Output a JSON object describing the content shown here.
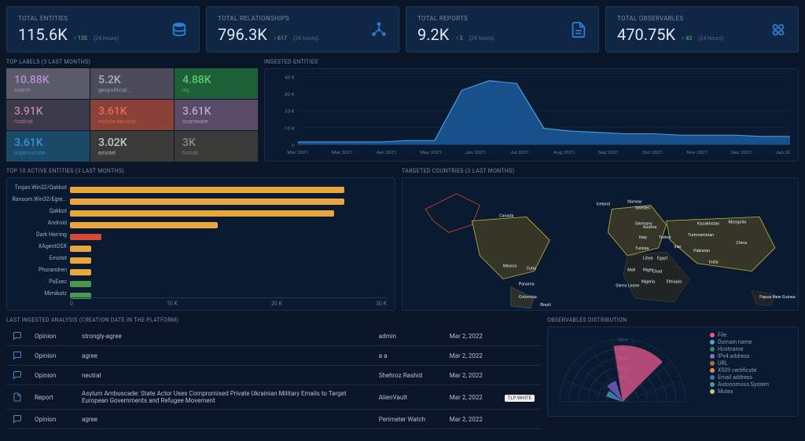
{
  "stats": [
    {
      "label": "TOTAL ENTITIES",
      "value": "115.6K",
      "delta": "↑ 135",
      "period": "(24 hours)",
      "icon": "database",
      "iconColor": "#2a7fd4"
    },
    {
      "label": "TOTAL RELATIONSHIPS",
      "value": "796.3K",
      "delta": "↑ 617",
      "period": "(24 hours)",
      "icon": "network",
      "iconColor": "#2a7fd4"
    },
    {
      "label": "TOTAL REPORTS",
      "value": "9.2K",
      "delta": "↑ 3",
      "period": "(24 hours)",
      "icon": "document",
      "iconColor": "#2a7fd4"
    },
    {
      "label": "TOTAL OBSERVABLES",
      "value": "470.75K",
      "delta": "↑ 43",
      "period": "(24 hours)",
      "icon": "hex",
      "iconColor": "#2a7fd4"
    }
  ],
  "topLabels": {
    "title": "TOP LABELS (3 LAST MONTHS)",
    "cells": [
      {
        "value": "10.88K",
        "name": "search",
        "bg": "#5a5a68",
        "fg": "#b88dd8"
      },
      {
        "value": "5.2K",
        "name": "geopolitical...",
        "bg": "#4a4a58",
        "fg": "#a8b0c0"
      },
      {
        "value": "4.88K",
        "name": "irq",
        "bg": "#1d6038",
        "fg": "#5ac96e"
      },
      {
        "value": "3.91K",
        "name": "motivat",
        "bg": "#3a3a48",
        "fg": "#c080b0"
      },
      {
        "value": "3.61K",
        "name": "mobile-security",
        "bg": "#8a4238",
        "fg": "#e86850"
      },
      {
        "value": "3.61K",
        "name": "scamware",
        "bg": "#5a4a68",
        "fg": "#b8a8d0"
      },
      {
        "value": "3.61K",
        "name": "impersonate",
        "bg": "#1a4a68",
        "fg": "#3494cc"
      },
      {
        "value": "3.02K",
        "name": "emotet",
        "bg": "#3a3a38",
        "fg": "#c0c8d6"
      },
      {
        "value": "3K",
        "name": "botnet",
        "bg": "#3a3a38",
        "fg": "#888888"
      }
    ]
  },
  "ingested": {
    "title": "INGESTED ENTITIES",
    "yticks": [
      "40 K",
      "30 K",
      "20 K",
      "10 K",
      "0"
    ],
    "xticks": [
      "Mar 2021",
      "Mar 2021",
      "Apr 2021",
      "May 2021",
      "Jun 2021",
      "Jul 2021",
      "Aug 2021",
      "Sep 2021",
      "Oct 2021",
      "Nov 2021",
      "Dec 2021",
      "Jan 2022"
    ],
    "areaColor": "#1a5a9a",
    "data": [
      2,
      2,
      2,
      2,
      3,
      3,
      40,
      47,
      45,
      12,
      10,
      9,
      8,
      8,
      7,
      7,
      7,
      6,
      6
    ]
  },
  "activeEntities": {
    "title": "TOP 10 ACTIVE ENTITIES (3 LAST MONTHS)",
    "xticks": [
      "0",
      "10 K",
      "20 K",
      "30 K"
    ],
    "xmax": 30,
    "bars": [
      {
        "label": "Trojan.Win32/Qakbot",
        "value": 26,
        "color": "#e8a63c"
      },
      {
        "label": "Ransom.Win32/Egre...",
        "value": 26,
        "color": "#e8a63c"
      },
      {
        "label": "Qakbot",
        "value": 25,
        "color": "#e8a63c"
      },
      {
        "label": "Android",
        "value": 14,
        "color": "#e8a63c"
      },
      {
        "label": "Dark Herring",
        "value": 3,
        "color": "#d84838"
      },
      {
        "label": "XAgentOSX",
        "value": 2,
        "color": "#e8a63c"
      },
      {
        "label": "Emotet",
        "value": 2,
        "color": "#e8a63c"
      },
      {
        "label": "Phorandren",
        "value": 2,
        "color": "#e8a63c"
      },
      {
        "label": "PsExec",
        "value": 2,
        "color": "#4a9850"
      },
      {
        "label": "Mimikatz",
        "value": 2,
        "color": "#4a9850"
      }
    ]
  },
  "targeted": {
    "title": "TARGETED COUNTRIES (3 LAST MONTHS)",
    "labels": [
      "Canada",
      "Iceland",
      "Norway",
      "Sweden",
      "Germany",
      "Italy",
      "Tunisia",
      "Turkey",
      "Austria",
      "Libya",
      "Egypt",
      "Kazakhstan",
      "Turkmenistan",
      "Mongolia",
      "Iran",
      "Pakistan",
      "China",
      "India",
      "Cuba",
      "Mexico",
      "Panama",
      "Mali",
      "Niger",
      "Chad",
      "Nigeria",
      "Sierra Leone",
      "Ethiopia",
      "Colombia",
      "Brazil",
      "Papua New Guinea"
    ]
  },
  "analysis": {
    "title": "LAST INGESTED ANALYSIS (CREATION DATE IN THE PLATFORM)",
    "rows": [
      {
        "type": "Opinion",
        "content": "strongly-agree",
        "author": "admin",
        "date": "Mar 2, 2022",
        "icon": "chat",
        "tlp": ""
      },
      {
        "type": "Opinion",
        "content": "agree",
        "author": "a a",
        "date": "Mar 2, 2022",
        "icon": "chat",
        "tlp": ""
      },
      {
        "type": "Opinion",
        "content": "neutral",
        "author": "Shehroz Rashid",
        "date": "Mar 2, 2022",
        "icon": "chat",
        "tlp": ""
      },
      {
        "type": "Report",
        "content": "Asylum Ambuscade: State Actor Uses Compromised Private Ukrainian Military Emails to Target European Governments and Refugee Movement",
        "author": "AlienVault",
        "date": "Mar 2, 2022",
        "icon": "document",
        "tlp": "TLP:WHITE"
      },
      {
        "type": "Opinion",
        "content": "agree",
        "author": "Perimeter Watch",
        "date": "Mar 2, 2022",
        "icon": "chat",
        "tlp": ""
      }
    ]
  },
  "distribution": {
    "title": "OBSERVABLES DISTRIBUTION",
    "ticks": [
      "240 K",
      "200 K",
      "160 K",
      "120 K",
      "80 K",
      "40 K"
    ],
    "legend": [
      {
        "label": "File",
        "color": "#e85a8c"
      },
      {
        "label": "Domain name",
        "color": "#4aa8d4"
      },
      {
        "label": "Hostname",
        "color": "#3a8a48"
      },
      {
        "label": "IPv4 address",
        "color": "#8a6ad4"
      },
      {
        "label": "URL",
        "color": "#9a7a3a"
      },
      {
        "label": "X509 certificate",
        "color": "#e88a4a"
      },
      {
        "label": "Email address",
        "color": "#3a7aa8"
      },
      {
        "label": "Autonomous System",
        "color": "#4a9a9a"
      },
      {
        "label": "Mutex",
        "color": "#c8c080"
      }
    ]
  }
}
